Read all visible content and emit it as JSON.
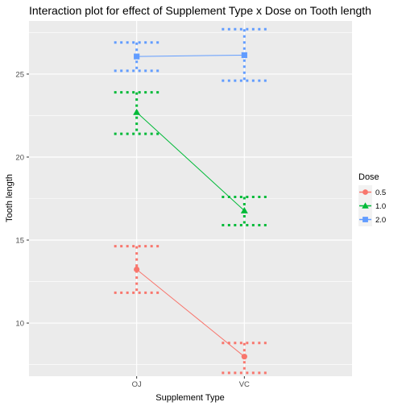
{
  "chart_data": {
    "type": "line",
    "title": "Interaction plot for effect of Supplement Type x Dose on Tooth length",
    "xlabel": "Supplement Type",
    "ylabel": "Tooth length",
    "categories": [
      "OJ",
      "VC"
    ],
    "ylim": [
      6.8,
      28.2
    ],
    "yticks": [
      10,
      15,
      20,
      25
    ],
    "grid": true,
    "legend": {
      "title": "Dose",
      "position": "right"
    },
    "series": [
      {
        "name": "0.5",
        "color": "#F8766D",
        "marker": "circle",
        "values": [
          13.23,
          7.98
        ],
        "error_bars": [
          [
            11.83,
            14.63
          ],
          [
            7.0,
            8.8
          ]
        ]
      },
      {
        "name": "1.0",
        "color": "#00BA38",
        "marker": "triangle",
        "values": [
          22.7,
          16.77
        ],
        "error_bars": [
          [
            21.4,
            23.9
          ],
          [
            15.9,
            17.6
          ]
        ]
      },
      {
        "name": "2.0",
        "color": "#619CFF",
        "marker": "square",
        "values": [
          26.06,
          26.14
        ],
        "error_bars": [
          [
            25.2,
            26.9
          ],
          [
            24.6,
            27.7
          ]
        ]
      }
    ]
  }
}
